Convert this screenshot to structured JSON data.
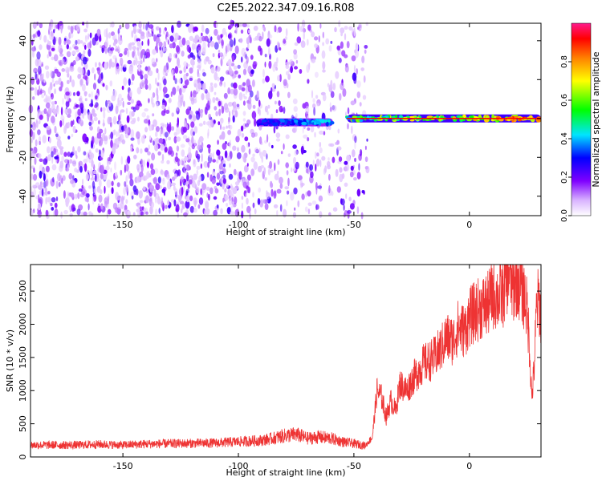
{
  "title": "C2E5.2022.347.09.16.R08",
  "chart_data": [
    {
      "id": "spectrogram",
      "type": "heatmap",
      "xlabel": "Height of straight line (km)",
      "ylabel": "Frequency (Hz)",
      "xlim": [
        -190,
        31
      ],
      "ylim": [
        -50,
        49
      ],
      "xticks": [
        -150,
        -100,
        -50,
        0
      ],
      "yticks": [
        -40,
        -20,
        0,
        20,
        40
      ],
      "colorbar": {
        "label": "Normalized spectral amplitude",
        "range": [
          0,
          1
        ],
        "ticks": [
          "0.0",
          "0.2",
          "0.4",
          "0.6",
          "0.8"
        ],
        "tick_values": [
          0,
          0.2,
          0.4,
          0.6,
          0.8
        ]
      },
      "features": [
        {
          "name": "broadband noise",
          "x_range": [
            -190,
            -44
          ],
          "freq_range": [
            -50,
            49
          ],
          "amplitude": [
            0.05,
            0.25
          ]
        },
        {
          "name": "tone segment 1",
          "x_range": [
            -92,
            -59
          ],
          "center_freq": -2,
          "amplitude": [
            0.2,
            0.45
          ]
        },
        {
          "name": "tone segment 2",
          "x_range": [
            -53,
            31
          ],
          "center_freq": 0,
          "amplitude": [
            0.3,
            0.95
          ]
        }
      ]
    },
    {
      "id": "snr",
      "type": "line",
      "xlabel": "Height of straight line (km)",
      "ylabel": "SNR (10 * v/v)",
      "xlim": [
        -190,
        31
      ],
      "ylim": [
        0,
        2900
      ],
      "xticks": [
        -150,
        -100,
        -50,
        0
      ],
      "yticks": [
        0,
        500,
        1000,
        1500,
        2000,
        2500
      ],
      "series": [
        {
          "name": "SNR",
          "color": "#ee3333",
          "x": [
            -190,
            -180,
            -170,
            -160,
            -150,
            -140,
            -130,
            -120,
            -110,
            -100,
            -90,
            -85,
            -80,
            -75,
            -70,
            -65,
            -60,
            -55,
            -50,
            -45,
            -42,
            -40,
            -38,
            -36,
            -34,
            -32,
            -30,
            -27,
            -25,
            -22,
            -20,
            -17,
            -15,
            -12,
            -10,
            -7,
            -5,
            -2,
            0,
            3,
            5,
            8,
            10,
            13,
            15,
            17,
            18,
            19,
            20,
            22,
            24,
            25,
            26,
            27,
            28,
            29,
            30,
            31
          ],
          "y": [
            180,
            180,
            180,
            190,
            180,
            195,
            200,
            205,
            210,
            230,
            250,
            280,
            320,
            340,
            280,
            300,
            280,
            230,
            200,
            170,
            300,
            1000,
            900,
            600,
            850,
            700,
            1100,
            1000,
            1150,
            1300,
            1400,
            1450,
            1500,
            1650,
            1800,
            1750,
            1950,
            1900,
            2100,
            2200,
            2250,
            2300,
            2450,
            2400,
            2500,
            2850,
            2650,
            2500,
            2700,
            2600,
            2400,
            2200,
            1700,
            900,
            1300,
            2200,
            2400,
            2050
          ]
        }
      ]
    }
  ]
}
